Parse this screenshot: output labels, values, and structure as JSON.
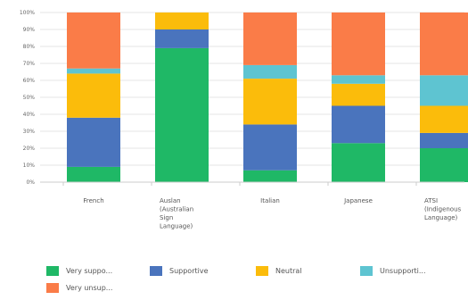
{
  "chart_data": {
    "type": "bar",
    "stacked": true,
    "categories": [
      [
        "French"
      ],
      [
        "Auslan",
        "(Australian",
        "Sign",
        "Language)"
      ],
      [
        "Italian"
      ],
      [
        "Japanese"
      ],
      [
        "ATSI",
        "(Indigenous",
        "Language)"
      ]
    ],
    "y_ticks": [
      "0%",
      "10%",
      "20%",
      "30%",
      "40%",
      "50%",
      "60%",
      "70%",
      "80%",
      "90%",
      "100%"
    ],
    "ylim": [
      0,
      100
    ],
    "grid": true,
    "legend_position": "bottom",
    "series": [
      {
        "name": "Very suppo...",
        "color": "#1fb866",
        "values": [
          9,
          79,
          7,
          23,
          20
        ]
      },
      {
        "name": "Supportive",
        "color": "#4a74bd",
        "values": [
          29,
          11,
          27,
          22,
          9
        ]
      },
      {
        "name": "Neutral",
        "color": "#fbbc0b",
        "values": [
          26,
          10,
          27,
          13,
          16
        ]
      },
      {
        "name": "Unsupporti...",
        "color": "#5ec4d1",
        "values": [
          3,
          0,
          8,
          5,
          18
        ]
      },
      {
        "name": "Very unsup...",
        "color": "#fa7c48",
        "values": [
          33,
          0,
          31,
          37,
          37
        ]
      }
    ]
  }
}
